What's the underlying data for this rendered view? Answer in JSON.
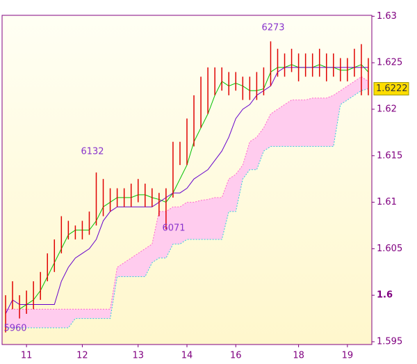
{
  "chart_data": {
    "type": "ichimoku",
    "xlim": [
      -0.5,
      52.5
    ],
    "xticks": [
      {
        "value": 3,
        "label": "11"
      },
      {
        "value": 11,
        "label": "12"
      },
      {
        "value": 19,
        "label": "13"
      },
      {
        "value": 26,
        "label": "14"
      },
      {
        "value": 33,
        "label": "16"
      },
      {
        "value": 42,
        "label": "18"
      },
      {
        "value": 49,
        "label": "19"
      }
    ],
    "ylim": [
      1.5947,
      1.6301
    ],
    "yticks": [
      1.595,
      1.6,
      1.605,
      1.61,
      1.615,
      1.62,
      1.625,
      1.63
    ],
    "high": [
      1.6,
      1.6015,
      1.6,
      1.6005,
      1.6015,
      1.6025,
      1.6045,
      1.606,
      1.6085,
      1.608,
      1.6075,
      1.608,
      1.609,
      1.6132,
      1.6125,
      1.6115,
      1.6115,
      1.6115,
      1.612,
      1.6125,
      1.612,
      1.6115,
      1.611,
      1.6115,
      1.6165,
      1.6165,
      1.619,
      1.6215,
      1.6235,
      1.6245,
      1.6245,
      1.6245,
      1.624,
      1.624,
      1.6235,
      1.6235,
      1.624,
      1.6245,
      1.6273,
      1.6265,
      1.626,
      1.6265,
      1.626,
      1.626,
      1.626,
      1.6265,
      1.626,
      1.626,
      1.6255,
      1.6255,
      1.6265,
      1.627,
      1.6255
    ],
    "low": [
      1.596,
      1.5985,
      1.5975,
      1.598,
      1.5985,
      1.5995,
      1.6015,
      1.6025,
      1.6045,
      1.606,
      1.606,
      1.606,
      1.6065,
      1.6075,
      1.6085,
      1.609,
      1.6095,
      1.6095,
      1.6095,
      1.61,
      1.6095,
      1.6095,
      1.6085,
      1.6071,
      1.6105,
      1.614,
      1.614,
      1.616,
      1.618,
      1.6195,
      1.6215,
      1.622,
      1.6215,
      1.622,
      1.621,
      1.621,
      1.621,
      1.6215,
      1.6225,
      1.6235,
      1.6235,
      1.624,
      1.623,
      1.6235,
      1.6235,
      1.6235,
      1.623,
      1.6235,
      1.623,
      1.623,
      1.6235,
      1.6215,
      1.6215
    ],
    "series": [
      {
        "color": "#00c000",
        "values": [
          null,
          null,
          1.5985,
          1.599,
          1.5995,
          1.6005,
          1.602,
          1.6035,
          1.605,
          1.6065,
          1.607,
          1.607,
          1.607,
          1.608,
          1.6095,
          1.61,
          1.6105,
          1.6105,
          1.6105,
          1.6108,
          1.6108,
          1.6105,
          1.6103,
          1.61,
          1.611,
          1.6125,
          1.614,
          1.6165,
          1.618,
          1.6195,
          1.6215,
          1.623,
          1.6225,
          1.6228,
          1.6225,
          1.622,
          1.622,
          1.6222,
          1.624,
          1.6245,
          1.6245,
          1.6248,
          1.6245,
          1.6245,
          1.6245,
          1.6248,
          1.6245,
          1.6245,
          1.6242,
          1.6242,
          1.6245,
          1.6248,
          1.624
        ]
      },
      {
        "color": "#6600cc",
        "values": [
          1.598,
          1.5995,
          1.599,
          1.599,
          1.599,
          1.599,
          1.599,
          1.599,
          1.6015,
          1.603,
          1.604,
          1.6045,
          1.605,
          1.606,
          1.608,
          1.609,
          1.6095,
          1.6095,
          1.6095,
          1.6095,
          1.6095,
          1.6095,
          1.61,
          1.6105,
          1.611,
          1.611,
          1.6115,
          1.6125,
          1.613,
          1.6135,
          1.6145,
          1.6155,
          1.617,
          1.619,
          1.62,
          1.6205,
          1.6215,
          1.622,
          1.6225,
          1.624,
          1.6245,
          1.6245,
          1.6245,
          1.6245,
          1.6245,
          1.6245,
          1.6245,
          1.6245,
          1.6245,
          1.6245,
          1.6245,
          1.6245,
          1.6245
        ]
      },
      {
        "color": "#ff66cc",
        "values": [
          1.5985,
          1.5985,
          1.5985,
          1.5985,
          1.5985,
          1.5985,
          1.5985,
          1.5985,
          1.5985,
          1.5985,
          1.5985,
          1.5985,
          1.5985,
          1.5985,
          1.5985,
          1.5985,
          1.603,
          1.6035,
          1.604,
          1.6045,
          1.605,
          1.6055,
          1.609,
          1.609,
          1.6095,
          1.6095,
          1.61,
          1.61,
          1.6102,
          1.6103,
          1.6105,
          1.6105,
          1.6125,
          1.613,
          1.614,
          1.6165,
          1.617,
          1.618,
          1.6195,
          1.62,
          1.6205,
          1.621,
          1.621,
          1.621,
          1.6212,
          1.6212,
          1.6212,
          1.6215,
          1.622,
          1.6225,
          1.623,
          1.6235,
          1.623
        ]
      },
      {
        "color": "#33ccdd",
        "values": [
          1.5965,
          1.5965,
          1.5965,
          1.5965,
          1.5965,
          1.5965,
          1.5965,
          1.5965,
          1.5965,
          1.5965,
          1.5975,
          1.5975,
          1.5975,
          1.5975,
          1.5975,
          1.5975,
          1.602,
          1.602,
          1.602,
          1.602,
          1.602,
          1.6035,
          1.604,
          1.604,
          1.6055,
          1.6055,
          1.606,
          1.606,
          1.606,
          1.606,
          1.606,
          1.606,
          1.609,
          1.609,
          1.6125,
          1.6135,
          1.6135,
          1.6155,
          1.616,
          1.616,
          1.616,
          1.616,
          1.616,
          1.616,
          1.616,
          1.616,
          1.616,
          1.616,
          1.6205,
          1.621,
          1.6215,
          1.622,
          1.6222
        ]
      }
    ],
    "bar_color": "#e00000",
    "cloud_color": "#ffccee",
    "annotations": [
      "6273",
      "6132",
      "6071",
      "5960"
    ],
    "last_price": 1.6222
  }
}
